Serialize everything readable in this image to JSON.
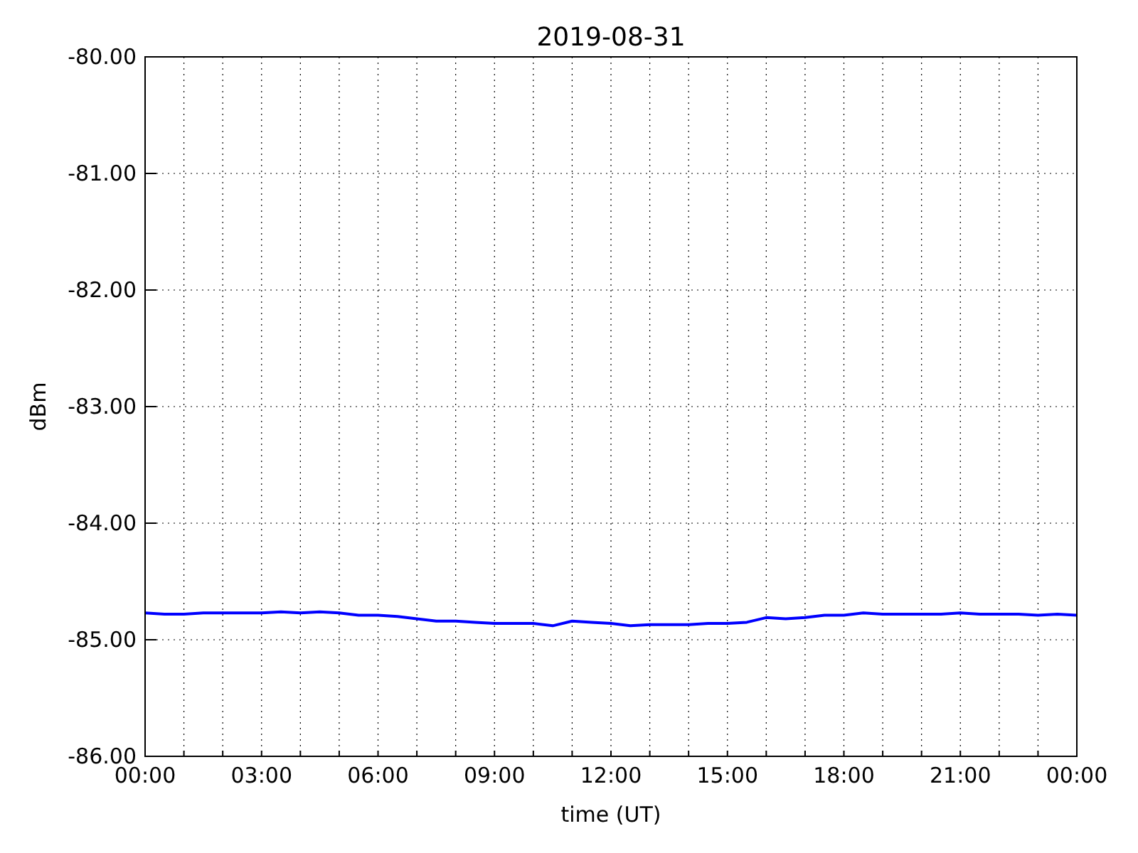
{
  "chart_data": {
    "type": "line",
    "title": "2019-08-31",
    "xlabel": "time (UT)",
    "ylabel": "dBm",
    "xlim": [
      0,
      24
    ],
    "xticks": [
      {
        "value": 0,
        "label": "00:00"
      },
      {
        "value": 1,
        "label": null
      },
      {
        "value": 2,
        "label": null
      },
      {
        "value": 3,
        "label": "03:00"
      },
      {
        "value": 4,
        "label": null
      },
      {
        "value": 5,
        "label": null
      },
      {
        "value": 6,
        "label": "06:00"
      },
      {
        "value": 7,
        "label": null
      },
      {
        "value": 8,
        "label": null
      },
      {
        "value": 9,
        "label": "09:00"
      },
      {
        "value": 10,
        "label": null
      },
      {
        "value": 11,
        "label": null
      },
      {
        "value": 12,
        "label": "12:00"
      },
      {
        "value": 13,
        "label": null
      },
      {
        "value": 14,
        "label": null
      },
      {
        "value": 15,
        "label": "15:00"
      },
      {
        "value": 16,
        "label": null
      },
      {
        "value": 17,
        "label": null
      },
      {
        "value": 18,
        "label": "18:00"
      },
      {
        "value": 19,
        "label": null
      },
      {
        "value": 20,
        "label": null
      },
      {
        "value": 21,
        "label": "21:00"
      },
      {
        "value": 22,
        "label": null
      },
      {
        "value": 23,
        "label": null
      },
      {
        "value": 24,
        "label": "00:00"
      }
    ],
    "ylim": [
      -86,
      -80
    ],
    "yticks": [
      {
        "value": -86,
        "label": "-86.00"
      },
      {
        "value": -85,
        "label": "-85.00"
      },
      {
        "value": -84,
        "label": "-84.00"
      },
      {
        "value": -83,
        "label": "-83.00"
      },
      {
        "value": -82,
        "label": "-82.00"
      },
      {
        "value": -81,
        "label": "-81.00"
      },
      {
        "value": -80,
        "label": "-80.00"
      }
    ],
    "grid": true,
    "x": [
      0,
      0.5,
      1,
      1.5,
      2,
      2.5,
      3,
      3.5,
      4,
      4.5,
      5,
      5.5,
      6,
      6.5,
      7,
      7.5,
      8,
      8.5,
      9,
      9.5,
      10,
      10.5,
      11,
      11.5,
      12,
      12.5,
      13,
      13.5,
      14,
      14.5,
      15,
      15.5,
      16,
      16.5,
      17,
      17.5,
      18,
      18.5,
      19,
      19.5,
      20,
      20.5,
      21,
      21.5,
      22,
      22.5,
      23,
      23.5,
      24
    ],
    "series": [
      {
        "color": "#0000ff",
        "values": [
          -84.77,
          -84.78,
          -84.78,
          -84.77,
          -84.77,
          -84.77,
          -84.77,
          -84.76,
          -84.77,
          -84.76,
          -84.77,
          -84.79,
          -84.79,
          -84.8,
          -84.82,
          -84.84,
          -84.84,
          -84.85,
          -84.86,
          -84.86,
          -84.86,
          -84.88,
          -84.84,
          -84.85,
          -84.86,
          -84.88,
          -84.87,
          -84.87,
          -84.87,
          -84.86,
          -84.86,
          -84.85,
          -84.81,
          -84.82,
          -84.81,
          -84.79,
          -84.79,
          -84.77,
          -84.78,
          -84.78,
          -84.78,
          -84.78,
          -84.77,
          -84.78,
          -84.78,
          -84.78,
          -84.79,
          -84.78,
          -84.79
        ]
      }
    ]
  }
}
